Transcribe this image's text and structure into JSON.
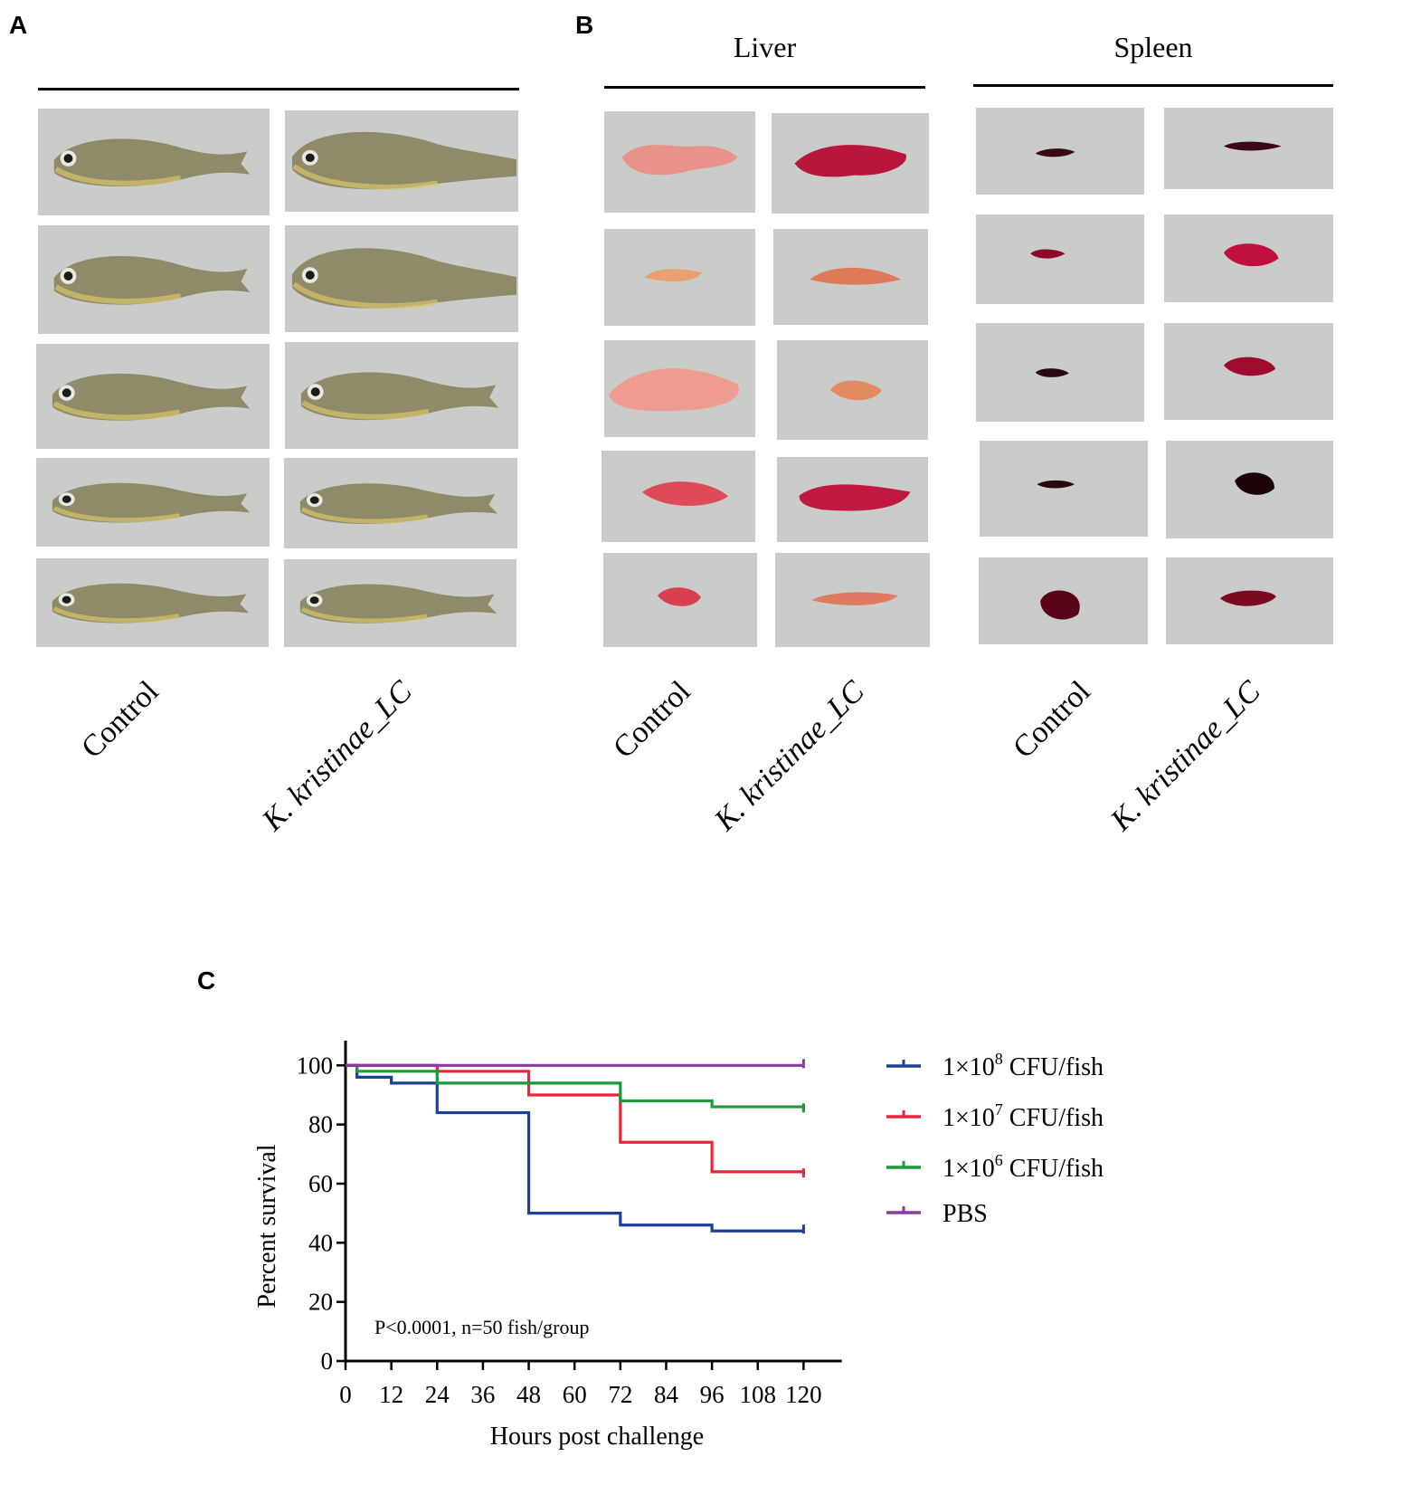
{
  "panels": {
    "a": {
      "letter": "A",
      "labels": [
        "Control",
        "K. kristinae_LC"
      ]
    },
    "b": {
      "letter": "B",
      "liver": {
        "title": "Liver",
        "labels": [
          "Control",
          "K. kristinae_LC"
        ]
      },
      "spleen": {
        "title": "Spleen",
        "labels": [
          "Control",
          "K. kristinae_LC"
        ]
      }
    },
    "c": {
      "letter": "C"
    }
  },
  "colors": {
    "photo_bg": "#c9ccc9",
    "fish": "#8f8a6a",
    "liver": "#e88a7a",
    "spleen": "#6a0f1e"
  },
  "chart_data": {
    "type": "line",
    "step": true,
    "xlabel": "Hours post challenge",
    "ylabel": "Percent survival",
    "xlim": [
      0,
      130
    ],
    "ylim": [
      0,
      110
    ],
    "xticks": [
      0,
      12,
      24,
      36,
      48,
      60,
      72,
      84,
      96,
      108,
      120
    ],
    "yticks": [
      0,
      20,
      40,
      60,
      80,
      100
    ],
    "annotation": "P<0.0001, n=50 fish/group",
    "legend_position": "right",
    "series": [
      {
        "name": "1×10^8 CFU/fish",
        "legend_base": "1×10",
        "legend_exp": "8",
        "legend_unit": " CFU/fish",
        "color": "#1f3f99",
        "x": [
          0,
          3,
          12,
          24,
          48,
          72,
          96,
          120
        ],
        "y": [
          100,
          96,
          94,
          84,
          50,
          46,
          44,
          44
        ]
      },
      {
        "name": "1×10^7 CFU/fish",
        "legend_base": "1×10",
        "legend_exp": "7",
        "legend_unit": " CFU/fish",
        "color": "#e8253a",
        "x": [
          0,
          12,
          24,
          48,
          72,
          96,
          120
        ],
        "y": [
          100,
          100,
          98,
          90,
          74,
          64,
          63
        ]
      },
      {
        "name": "1×10^6 CFU/fish",
        "legend_base": "1×10",
        "legend_exp": "6",
        "legend_unit": " CFU/fish",
        "color": "#1a9a3a",
        "x": [
          0,
          3,
          24,
          72,
          96,
          120
        ],
        "y": [
          100,
          98,
          94,
          88,
          86,
          85
        ]
      },
      {
        "name": "PBS",
        "legend_base": "PBS",
        "legend_exp": "",
        "legend_unit": "",
        "color": "#8a3aa0",
        "x": [
          0,
          120
        ],
        "y": [
          100,
          100
        ]
      }
    ]
  }
}
